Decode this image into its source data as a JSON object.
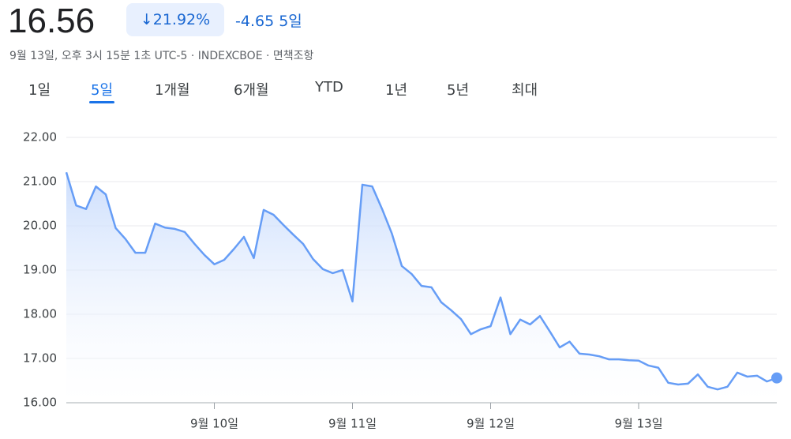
{
  "header": {
    "price": "16.56",
    "change_pct": "21.92%",
    "change": "-4.65",
    "period": "5일",
    "meta": [
      "9월 13일, 오후 3시 15분 1초 UTC-5",
      "INDEXCBOE",
      "면책조항"
    ]
  },
  "tabs": [
    "1일",
    "5일",
    "1개월",
    "6개월",
    "YTD",
    "1년",
    "5년",
    "최대"
  ],
  "active_tab": 1,
  "chart_data": {
    "type": "line",
    "color": "#669df6",
    "grid": true,
    "values": [
      21.21,
      20.46,
      20.38,
      20.89,
      20.71,
      19.95,
      19.7,
      19.39,
      19.39,
      20.05,
      19.96,
      19.93,
      19.86,
      19.59,
      19.34,
      19.13,
      19.23,
      19.48,
      19.75,
      19.27,
      20.36,
      20.25,
      20.02,
      19.8,
      19.59,
      19.25,
      19.02,
      18.93,
      19.0,
      18.29,
      20.93,
      20.89,
      20.38,
      19.82,
      19.09,
      18.91,
      18.64,
      18.61,
      18.27,
      18.09,
      17.89,
      17.55,
      17.66,
      17.73,
      18.38,
      17.55,
      17.88,
      17.77,
      17.96,
      17.61,
      17.25,
      17.38,
      17.11,
      17.09,
      17.05,
      16.98,
      16.98,
      16.96,
      16.95,
      16.84,
      16.79,
      16.45,
      16.41,
      16.43,
      16.64,
      16.36,
      16.3,
      16.36,
      16.68,
      16.59,
      16.61,
      16.48,
      16.56
    ],
    "xlim": [
      0,
      72
    ],
    "xticks": [
      {
        "value": 15,
        "label": "9월 10일"
      },
      {
        "value": 29,
        "label": "9월 11일"
      },
      {
        "value": 43,
        "label": "9월 12일"
      },
      {
        "value": 58,
        "label": "9월 13일"
      }
    ],
    "ylim": [
      16,
      22
    ],
    "yticks": [
      {
        "value": 16,
        "label": "16.00"
      },
      {
        "value": 17,
        "label": "17.00"
      },
      {
        "value": 18,
        "label": "18.00"
      },
      {
        "value": 19,
        "label": "19.00"
      },
      {
        "value": 20,
        "label": "20.00"
      },
      {
        "value": 21,
        "label": "21.00"
      },
      {
        "value": 22,
        "label": "22.00"
      }
    ]
  }
}
